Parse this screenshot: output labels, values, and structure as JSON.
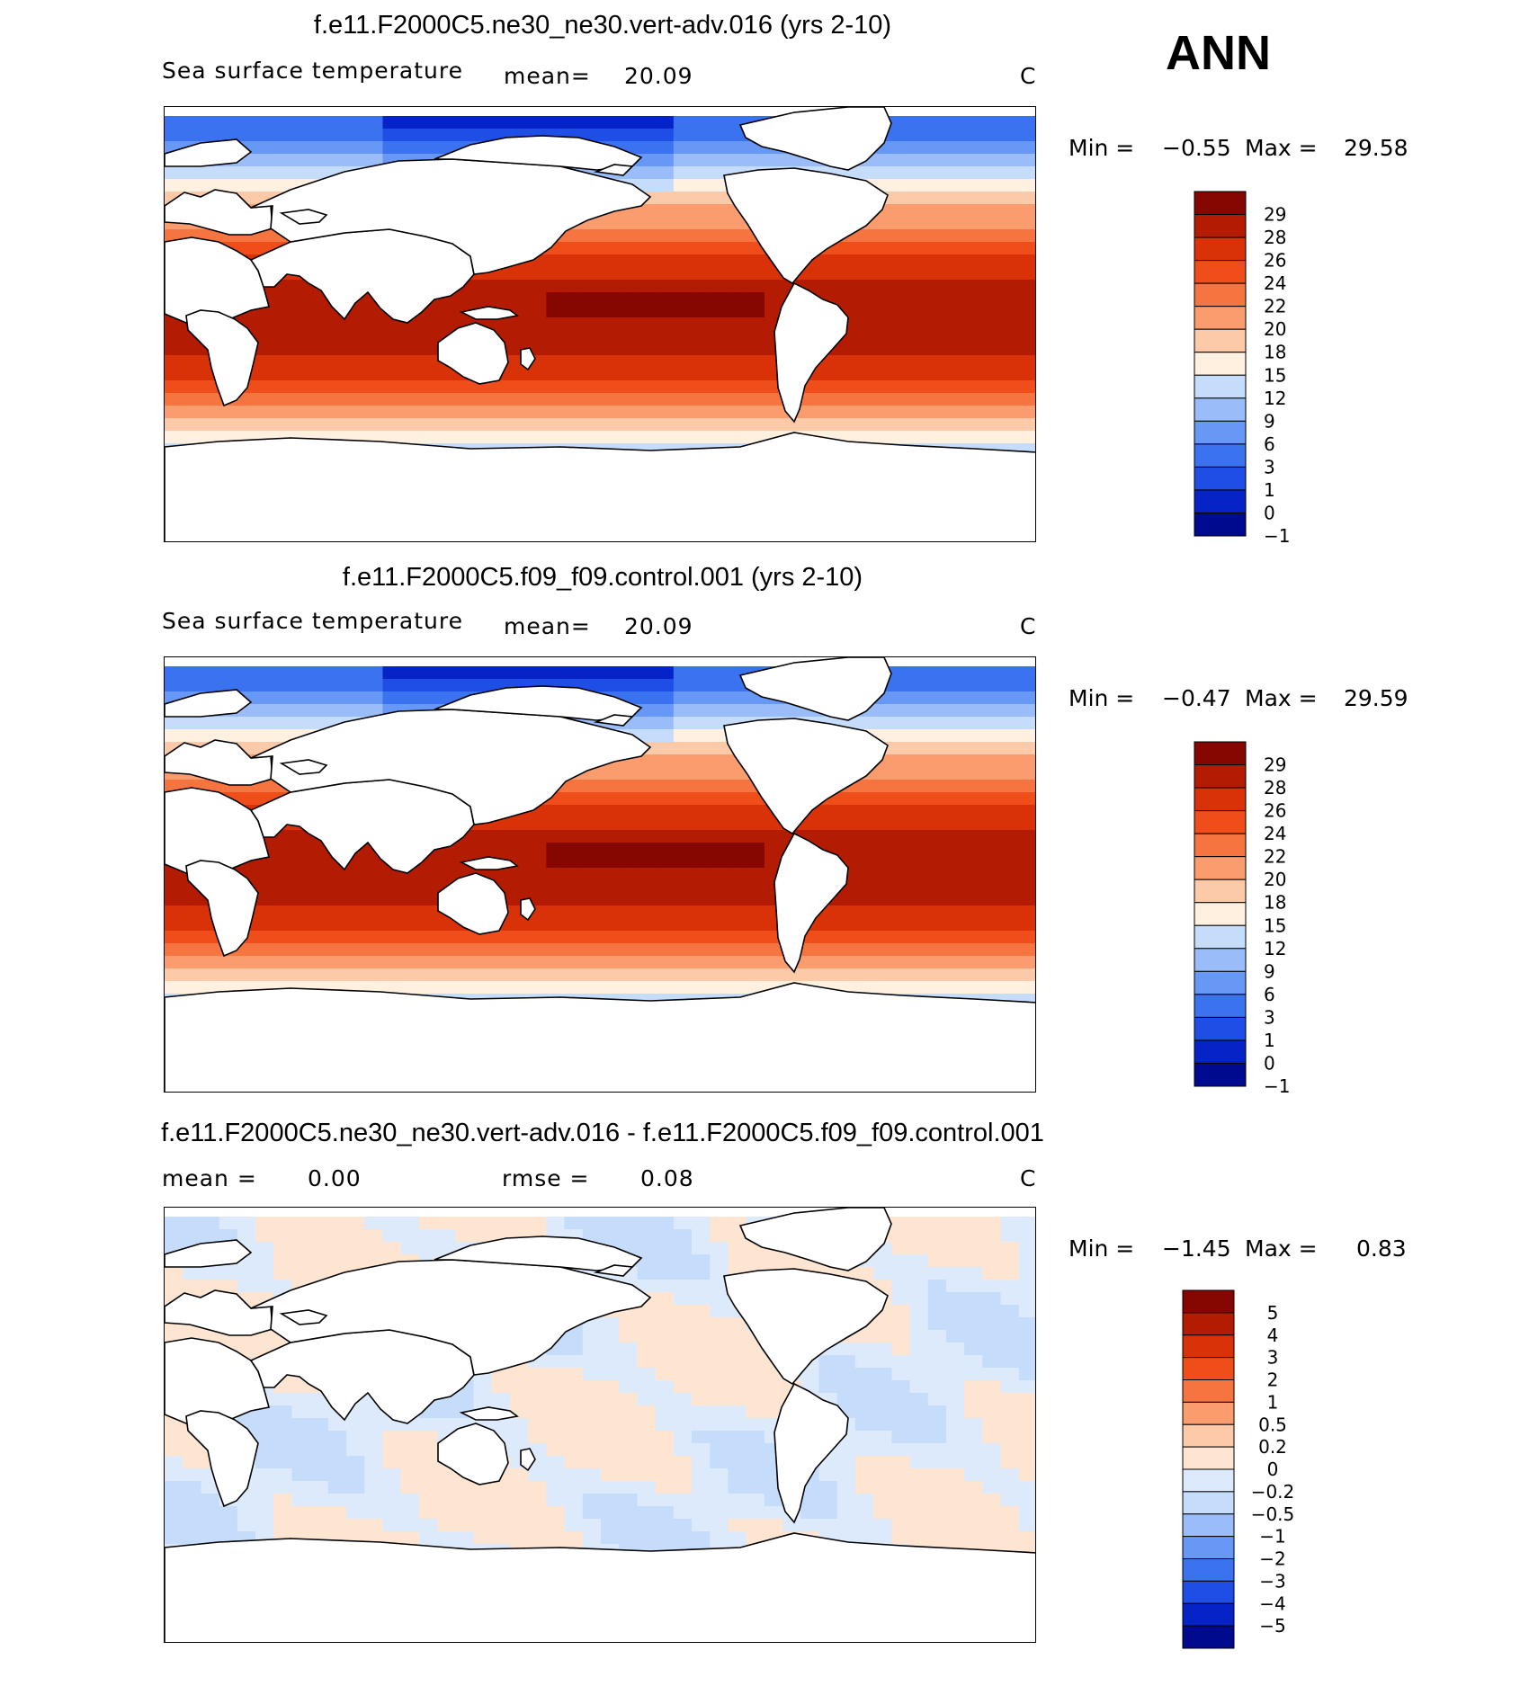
{
  "season": "ANN",
  "palette_abs": [
    "#000a8f",
    "#0523c7",
    "#1e4ee6",
    "#3b72ef",
    "#6898f5",
    "#9abdfa",
    "#c6dcfb",
    "#fff0e0",
    "#fccaa8",
    "#fb9c6e",
    "#f6743f",
    "#ef4e1a",
    "#d93208",
    "#b31b02",
    "#860701"
  ],
  "palette_diff": [
    "#000a8f",
    "#0523c7",
    "#1e4ee6",
    "#3b72ef",
    "#6898f5",
    "#9abdfa",
    "#c6dcfb",
    "#dceafc",
    "#fde5d2",
    "#fccaa8",
    "#fb9c6e",
    "#f6743f",
    "#ef4e1a",
    "#d93208",
    "#b31b02",
    "#860701"
  ],
  "panels": [
    {
      "title": "f.e11.F2000C5.ne30_ne30.vert-adv.016 (yrs 2-10)",
      "variable": "Sea surface temperature",
      "mean_label": "mean=",
      "mean_value": "20.09",
      "units": "C",
      "min_label": "Min =",
      "min_value": "−0.55",
      "max_label": "Max =",
      "max_value": "29.58",
      "colorbar_labels": [
        "29",
        "28",
        "26",
        "24",
        "22",
        "20",
        "18",
        "15",
        "12",
        "9",
        "6",
        "3",
        "1",
        "0",
        "−1"
      ]
    },
    {
      "title": "f.e11.F2000C5.f09_f09.control.001 (yrs 2-10)",
      "variable": "Sea surface temperature",
      "mean_label": "mean=",
      "mean_value": "20.09",
      "units": "C",
      "min_label": "Min =",
      "min_value": "−0.47",
      "max_label": "Max =",
      "max_value": "29.59",
      "colorbar_labels": [
        "29",
        "28",
        "26",
        "24",
        "22",
        "20",
        "18",
        "15",
        "12",
        "9",
        "6",
        "3",
        "1",
        "0",
        "−1"
      ]
    },
    {
      "title": "f.e11.F2000C5.ne30_ne30.vert-adv.016 - f.e11.F2000C5.f09_f09.control.001",
      "mean_label": "mean =",
      "mean_value": "0.00",
      "rmse_label": "rmse =",
      "rmse_value": "0.08",
      "units": "C",
      "min_label": "Min =",
      "min_value": "−1.45",
      "max_label": "Max =",
      "max_value": "0.83",
      "colorbar_labels": [
        "5",
        "4",
        "3",
        "2",
        "1",
        "0.5",
        "0.2",
        "0",
        "−0.2",
        "−0.5",
        "−1",
        "−2",
        "−3",
        "−4",
        "−5"
      ]
    }
  ]
}
